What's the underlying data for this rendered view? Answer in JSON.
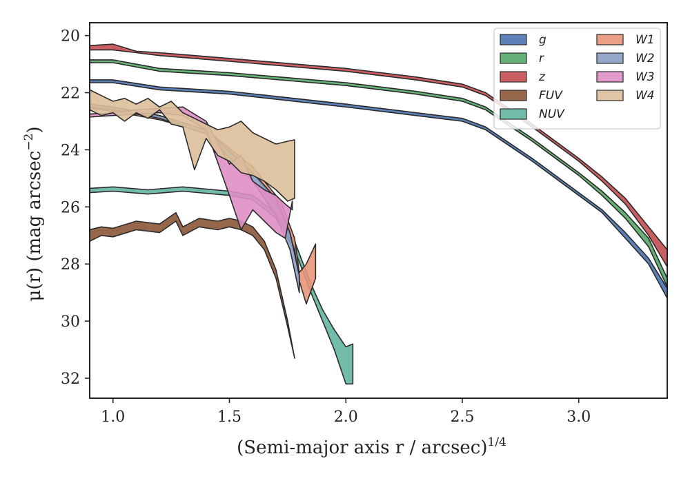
{
  "chart_data": {
    "type": "area",
    "xlabel": "(Semi-major axis r / arcsec)",
    "xlabel_exponent": "1/4",
    "ylabel": "μ(r) (mag arcsec",
    "ylabel_exponent": "−2",
    "xlim": [
      0.9,
      3.38
    ],
    "ylim": [
      32.7,
      19.55
    ],
    "y_inverted": true,
    "grid": false,
    "legend_position": "top-right",
    "legend_columns": 2,
    "x_ticks": [
      1.0,
      1.5,
      2.0,
      2.5,
      3.0
    ],
    "x_tick_labels": [
      "1.0",
      "1.5",
      "2.0",
      "2.5",
      "3.0"
    ],
    "y_ticks": [
      20,
      22,
      24,
      26,
      28,
      30,
      32
    ],
    "y_tick_labels": [
      "20",
      "22",
      "24",
      "26",
      "28",
      "30",
      "32"
    ],
    "series": [
      {
        "name": "g",
        "color": "#4c72b0",
        "x": [
          0.9,
          1.0,
          1.2,
          1.5,
          2.0,
          2.3,
          2.5,
          2.6,
          2.8,
          3.0,
          3.1,
          3.2,
          3.3,
          3.38
        ],
        "y_upper": [
          21.55,
          21.55,
          21.8,
          21.95,
          22.4,
          22.7,
          22.9,
          23.2,
          24.3,
          25.5,
          26.1,
          26.9,
          27.8,
          28.85
        ],
        "y_lower": [
          21.65,
          21.65,
          21.9,
          22.05,
          22.5,
          22.8,
          23.0,
          23.3,
          24.4,
          25.6,
          26.2,
          27.1,
          28.0,
          29.2
        ]
      },
      {
        "name": "r",
        "color": "#55a868",
        "x": [
          0.9,
          1.0,
          1.2,
          1.5,
          2.0,
          2.3,
          2.5,
          2.6,
          2.8,
          3.0,
          3.1,
          3.2,
          3.3,
          3.38
        ],
        "y_upper": [
          20.85,
          20.85,
          21.15,
          21.3,
          21.65,
          21.95,
          22.2,
          22.5,
          23.6,
          24.8,
          25.45,
          26.2,
          27.1,
          28.5
        ],
        "y_lower": [
          20.95,
          20.95,
          21.25,
          21.4,
          21.75,
          22.05,
          22.3,
          22.6,
          23.7,
          24.9,
          25.6,
          26.4,
          27.4,
          28.8
        ]
      },
      {
        "name": "z",
        "color": "#c44e52",
        "x": [
          0.9,
          1.0,
          1.1,
          1.2,
          1.5,
          2.0,
          2.3,
          2.5,
          2.6,
          2.8,
          3.0,
          3.1,
          3.2,
          3.3,
          3.38
        ],
        "y_upper": [
          20.35,
          20.3,
          20.55,
          20.6,
          20.8,
          21.15,
          21.45,
          21.7,
          22.0,
          23.1,
          24.3,
          24.95,
          25.7,
          26.7,
          27.5
        ],
        "y_lower": [
          20.5,
          20.5,
          20.6,
          20.7,
          20.9,
          21.25,
          21.55,
          21.8,
          22.1,
          23.2,
          24.4,
          25.1,
          25.9,
          27.0,
          28.1
        ]
      },
      {
        "name": "FUV",
        "color": "#8c5637",
        "x": [
          0.9,
          0.95,
          1.0,
          1.1,
          1.2,
          1.27,
          1.3,
          1.37,
          1.45,
          1.5,
          1.55,
          1.6,
          1.65,
          1.7,
          1.75,
          1.78
        ],
        "y_upper": [
          26.8,
          26.7,
          26.75,
          26.5,
          26.6,
          26.2,
          26.7,
          26.4,
          26.5,
          26.4,
          26.5,
          26.7,
          27.2,
          28.2,
          30.0,
          31.3
        ],
        "y_lower": [
          27.2,
          27.0,
          27.05,
          26.8,
          26.9,
          26.5,
          27.0,
          26.7,
          26.8,
          26.7,
          26.8,
          27.0,
          27.5,
          28.5,
          30.2,
          31.3
        ]
      },
      {
        "name": "NUV",
        "color": "#64b5a0",
        "x": [
          0.9,
          1.0,
          1.15,
          1.3,
          1.5,
          1.6,
          1.7,
          1.78,
          1.85,
          1.9,
          1.95,
          2.0,
          2.03
        ],
        "y_upper": [
          25.35,
          25.3,
          25.4,
          25.3,
          25.45,
          25.6,
          26.2,
          27.2,
          28.7,
          29.6,
          30.3,
          30.9,
          30.8
        ],
        "y_lower": [
          25.5,
          25.45,
          25.55,
          25.45,
          25.6,
          25.75,
          26.4,
          27.5,
          29.0,
          30.0,
          31.0,
          32.2,
          32.2
        ]
      },
      {
        "name": "W1",
        "color": "#e8967a",
        "x": [
          0.9,
          1.0,
          1.2,
          1.4,
          1.6,
          1.72,
          1.78,
          1.8,
          1.83,
          1.87
        ],
        "y_upper": [
          22.45,
          22.55,
          22.85,
          23.3,
          24.6,
          25.8,
          27.1,
          28.3,
          28.0,
          27.3
        ],
        "y_lower": [
          22.55,
          22.65,
          22.95,
          23.4,
          24.8,
          26.1,
          27.5,
          28.6,
          29.4,
          28.5
        ]
      },
      {
        "name": "W2",
        "color": "#8c9fc8",
        "x": [
          0.9,
          1.0,
          1.2,
          1.4,
          1.6,
          1.7,
          1.76,
          1.8
        ],
        "y_upper": [
          22.4,
          22.5,
          22.8,
          23.3,
          24.8,
          25.7,
          26.9,
          28.4
        ],
        "y_lower": [
          22.5,
          22.6,
          22.9,
          23.45,
          25.1,
          26.3,
          27.5,
          29.0
        ]
      },
      {
        "name": "W3",
        "color": "#de8fc4",
        "x": [
          0.9,
          1.0,
          1.1,
          1.2,
          1.3,
          1.4,
          1.5,
          1.55,
          1.6,
          1.65,
          1.7,
          1.74,
          1.77
        ],
        "y_upper": [
          22.75,
          22.7,
          22.6,
          22.55,
          22.5,
          23.0,
          24.5,
          24.2,
          25.1,
          25.4,
          25.6,
          25.9,
          26.1
        ],
        "y_lower": [
          22.85,
          22.8,
          22.75,
          22.7,
          22.8,
          23.3,
          25.6,
          26.8,
          26.1,
          26.5,
          26.9,
          27.1,
          25.8
        ]
      },
      {
        "name": "W4",
        "color": "#dcbf9a",
        "x": [
          0.9,
          0.95,
          1.0,
          1.05,
          1.1,
          1.15,
          1.2,
          1.25,
          1.3,
          1.35,
          1.4,
          1.45,
          1.5,
          1.55,
          1.6,
          1.65,
          1.7,
          1.75,
          1.78
        ],
        "y_upper": [
          21.9,
          22.1,
          22.3,
          22.2,
          22.4,
          22.2,
          22.5,
          22.3,
          22.7,
          22.9,
          23.1,
          23.3,
          23.2,
          23.0,
          23.4,
          23.6,
          23.8,
          23.7,
          23.65
        ],
        "y_lower": [
          22.6,
          22.8,
          22.7,
          23.0,
          22.7,
          22.9,
          22.6,
          23.1,
          23.2,
          24.7,
          23.6,
          24.2,
          24.4,
          24.8,
          24.9,
          25.1,
          25.4,
          25.8,
          25.7
        ]
      }
    ]
  }
}
